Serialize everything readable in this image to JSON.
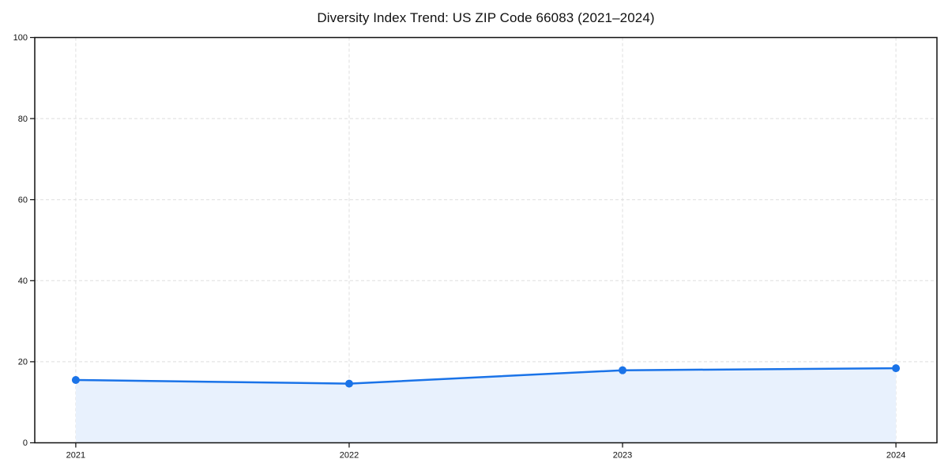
{
  "chart_data": {
    "type": "area",
    "title": "Diversity Index Trend: US ZIP Code 66083 (2021–2024)",
    "x": [
      2021,
      2022,
      2023,
      2024
    ],
    "xtick_labels": [
      "2021",
      "2022",
      "2023",
      "2024"
    ],
    "series": [
      {
        "name": "Diversity Index",
        "values": [
          15.5,
          14.6,
          17.9,
          18.4
        ]
      }
    ],
    "xlabel": "",
    "ylabel": "",
    "ylim": [
      0,
      100
    ],
    "yticks": [
      0,
      20,
      40,
      60,
      80,
      100
    ],
    "grid": "dashed-both-axes",
    "legend": "none",
    "marker": "circle",
    "colors": {
      "line": "#1a73e8",
      "fill": "#e8f1fd",
      "grid": "#dedede",
      "axis": "#111111",
      "tick_text": "#111111",
      "background": "#ffffff"
    }
  }
}
